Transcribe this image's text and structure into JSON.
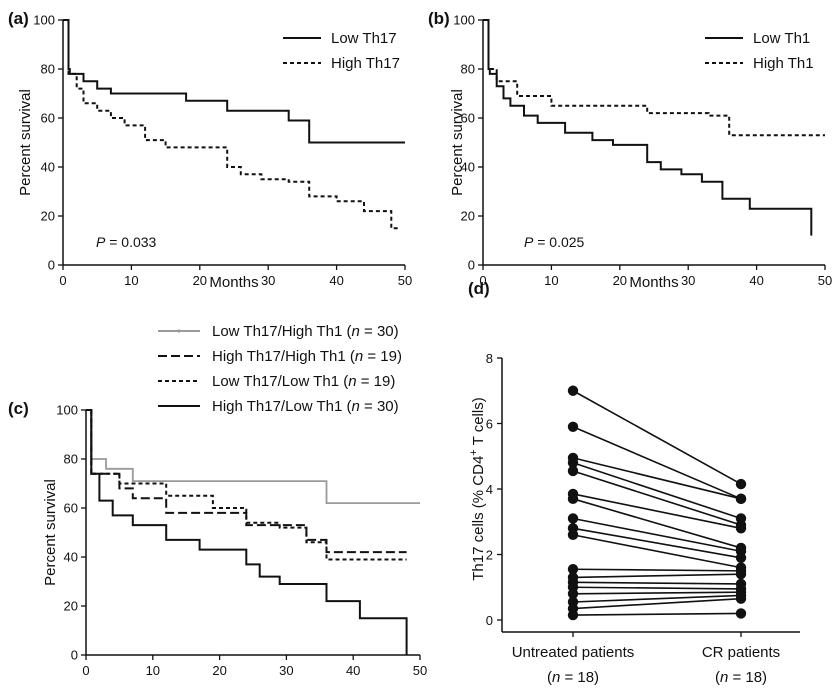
{
  "chart_data": [
    {
      "panel": "(a)",
      "type": "line",
      "step": true,
      "xlabel": "Months",
      "ylabel": "Percent survival",
      "xlim": [
        0,
        50
      ],
      "ylim": [
        0,
        100
      ],
      "xticks": [
        "0",
        "10",
        "20",
        "30",
        "40",
        "50"
      ],
      "yticks": [
        "0",
        "20",
        "40",
        "60",
        "80",
        "100"
      ],
      "annotation": {
        "prefix": "P",
        "value": " = 0.033"
      },
      "legend_position": "top-right",
      "series": [
        {
          "name": "Low Th17",
          "style": "solid",
          "color": "#111111",
          "points": [
            [
              0,
              100
            ],
            [
              0.8,
              100
            ],
            [
              0.8,
              80
            ],
            [
              1,
              80
            ],
            [
              1,
              78
            ],
            [
              3,
              78
            ],
            [
              3,
              75
            ],
            [
              5,
              75
            ],
            [
              5,
              72
            ],
            [
              7,
              72
            ],
            [
              7,
              70
            ],
            [
              18,
              70
            ],
            [
              18,
              67
            ],
            [
              24,
              67
            ],
            [
              24,
              63
            ],
            [
              33,
              63
            ],
            [
              33,
              59
            ],
            [
              36,
              59
            ],
            [
              36,
              50
            ],
            [
              50,
              50
            ]
          ]
        },
        {
          "name": "High Th17",
          "style": "dashed",
          "color": "#111111",
          "points": [
            [
              0,
              100
            ],
            [
              0.8,
              100
            ],
            [
              0.8,
              78
            ],
            [
              2,
              78
            ],
            [
              2,
              72
            ],
            [
              3,
              72
            ],
            [
              3,
              66
            ],
            [
              5,
              66
            ],
            [
              5,
              63
            ],
            [
              7,
              63
            ],
            [
              7,
              60
            ],
            [
              9,
              60
            ],
            [
              9,
              57
            ],
            [
              12,
              57
            ],
            [
              12,
              51
            ],
            [
              15,
              51
            ],
            [
              15,
              48
            ],
            [
              24,
              48
            ],
            [
              24,
              40
            ],
            [
              26,
              40
            ],
            [
              26,
              37
            ],
            [
              29,
              37
            ],
            [
              29,
              35
            ],
            [
              33,
              35
            ],
            [
              33,
              34
            ],
            [
              36,
              34
            ],
            [
              36,
              28
            ],
            [
              40,
              28
            ],
            [
              40,
              26
            ],
            [
              44,
              26
            ],
            [
              44,
              22
            ],
            [
              48,
              22
            ],
            [
              48,
              15
            ],
            [
              49,
              15
            ]
          ]
        }
      ]
    },
    {
      "panel": "(b)",
      "type": "line",
      "step": true,
      "xlabel": "Months",
      "ylabel": "Percent survival",
      "xlim": [
        0,
        50
      ],
      "ylim": [
        0,
        100
      ],
      "xticks": [
        "0",
        "10",
        "20",
        "30",
        "40",
        "50"
      ],
      "yticks": [
        "0",
        "20",
        "40",
        "60",
        "80",
        "100"
      ],
      "annotation": {
        "prefix": "P",
        "value": " = 0.025"
      },
      "legend_position": "top-right",
      "series": [
        {
          "name": "Low Th1",
          "style": "solid",
          "color": "#111111",
          "points": [
            [
              0,
              100
            ],
            [
              0.8,
              100
            ],
            [
              0.8,
              80
            ],
            [
              1,
              80
            ],
            [
              1,
              78
            ],
            [
              2,
              78
            ],
            [
              2,
              73
            ],
            [
              3,
              73
            ],
            [
              3,
              68
            ],
            [
              4,
              68
            ],
            [
              4,
              65
            ],
            [
              6,
              65
            ],
            [
              6,
              61
            ],
            [
              8,
              61
            ],
            [
              8,
              58
            ],
            [
              12,
              58
            ],
            [
              12,
              54
            ],
            [
              16,
              54
            ],
            [
              16,
              51
            ],
            [
              19,
              51
            ],
            [
              19,
              49
            ],
            [
              24,
              49
            ],
            [
              24,
              42
            ],
            [
              26,
              42
            ],
            [
              26,
              39
            ],
            [
              29,
              39
            ],
            [
              29,
              37
            ],
            [
              32,
              37
            ],
            [
              32,
              34
            ],
            [
              35,
              34
            ],
            [
              35,
              27
            ],
            [
              39,
              27
            ],
            [
              39,
              23
            ],
            [
              42,
              23
            ],
            [
              42,
              23
            ],
            [
              48,
              23
            ],
            [
              48,
              12
            ]
          ]
        },
        {
          "name": "High Th1",
          "style": "dashed",
          "color": "#111111",
          "points": [
            [
              0,
              100
            ],
            [
              0.8,
              100
            ],
            [
              0.8,
              80
            ],
            [
              2,
              80
            ],
            [
              2,
              75
            ],
            [
              5,
              75
            ],
            [
              5,
              69
            ],
            [
              10,
              69
            ],
            [
              10,
              65
            ],
            [
              24,
              65
            ],
            [
              24,
              62
            ],
            [
              33,
              62
            ],
            [
              33,
              61
            ],
            [
              36,
              61
            ],
            [
              36,
              53
            ],
            [
              50,
              53
            ]
          ]
        }
      ]
    },
    {
      "panel": "(c)",
      "type": "line",
      "step": true,
      "xlim": [
        0,
        50
      ],
      "ylim": [
        0,
        100
      ],
      "xticks": [
        "0",
        "10",
        "20",
        "30",
        "40",
        "50"
      ],
      "yticks": [
        "0",
        "20",
        "40",
        "60",
        "80",
        "100"
      ],
      "ylabel": "Percent survival",
      "legend_position": "top",
      "series": [
        {
          "name": "Low Th17/High Th1",
          "n": "30",
          "style": "solid-gray",
          "color": "#9a9a9a",
          "points": [
            [
              0,
              100
            ],
            [
              0.8,
              100
            ],
            [
              0.8,
              80
            ],
            [
              3,
              80
            ],
            [
              3,
              76
            ],
            [
              7,
              76
            ],
            [
              7,
              71
            ],
            [
              36,
              71
            ],
            [
              36,
              62
            ],
            [
              50,
              62
            ]
          ]
        },
        {
          "name": "High Th17/High Th1",
          "n": "19",
          "style": "longdash",
          "color": "#111111",
          "points": [
            [
              0,
              100
            ],
            [
              0.8,
              100
            ],
            [
              0.8,
              74
            ],
            [
              5,
              74
            ],
            [
              5,
              68
            ],
            [
              7,
              68
            ],
            [
              7,
              64
            ],
            [
              12,
              64
            ],
            [
              12,
              58
            ],
            [
              24,
              58
            ],
            [
              24,
              53
            ],
            [
              33,
              53
            ],
            [
              33,
              47
            ],
            [
              36,
              47
            ],
            [
              36,
              42
            ],
            [
              48,
              42
            ]
          ]
        },
        {
          "name": "Low Th17/Low Th1",
          "n": "19",
          "style": "dashed",
          "color": "#111111",
          "points": [
            [
              0,
              100
            ],
            [
              0.8,
              100
            ],
            [
              0.8,
              74
            ],
            [
              5,
              74
            ],
            [
              5,
              70
            ],
            [
              12,
              70
            ],
            [
              12,
              65
            ],
            [
              19,
              65
            ],
            [
              19,
              60
            ],
            [
              24,
              60
            ],
            [
              24,
              54
            ],
            [
              29,
              54
            ],
            [
              29,
              52
            ],
            [
              33,
              52
            ],
            [
              33,
              46
            ],
            [
              36,
              46
            ],
            [
              36,
              39
            ],
            [
              48,
              39
            ]
          ]
        },
        {
          "name": "High Th17/Low Th1",
          "n": "30",
          "style": "solid",
          "color": "#111111",
          "points": [
            [
              0,
              100
            ],
            [
              0.8,
              100
            ],
            [
              0.8,
              74
            ],
            [
              2,
              74
            ],
            [
              2,
              63
            ],
            [
              4,
              63
            ],
            [
              4,
              57
            ],
            [
              7,
              57
            ],
            [
              7,
              53
            ],
            [
              12,
              53
            ],
            [
              12,
              47
            ],
            [
              17,
              47
            ],
            [
              17,
              43
            ],
            [
              24,
              43
            ],
            [
              24,
              37
            ],
            [
              26,
              37
            ],
            [
              26,
              32
            ],
            [
              29,
              32
            ],
            [
              29,
              29
            ],
            [
              36,
              29
            ],
            [
              36,
              22
            ],
            [
              41,
              22
            ],
            [
              41,
              15
            ],
            [
              48,
              15
            ],
            [
              48,
              0
            ]
          ]
        }
      ]
    },
    {
      "panel": "(d)",
      "type": "scatter",
      "paired": true,
      "ylabel_main": "Th17 cells (% CD4",
      "ylabel_sup": "+",
      "ylabel_tail": " T cells)",
      "ylim": [
        0,
        8
      ],
      "yticks": [
        "0",
        "2",
        "4",
        "6",
        "8"
      ],
      "categories": [
        {
          "label": "Untreated patients",
          "n_prefix": "(",
          "n_var": "n",
          "n_value": " = 18)"
        },
        {
          "label": "CR patients",
          "n_prefix": "(",
          "n_var": "n",
          "n_value": " = 18)"
        }
      ],
      "pairs": [
        [
          7.0,
          4.15
        ],
        [
          5.9,
          3.7
        ],
        [
          4.95,
          3.7
        ],
        [
          4.8,
          3.1
        ],
        [
          4.55,
          2.9
        ],
        [
          3.85,
          2.8
        ],
        [
          3.7,
          2.2
        ],
        [
          3.1,
          2.1
        ],
        [
          2.8,
          1.9
        ],
        [
          2.6,
          1.6
        ],
        [
          1.55,
          1.5
        ],
        [
          1.3,
          1.4
        ],
        [
          1.15,
          1.1
        ],
        [
          1.0,
          0.95
        ],
        [
          0.8,
          0.85
        ],
        [
          0.55,
          0.75
        ],
        [
          0.35,
          0.65
        ],
        [
          0.15,
          0.2
        ]
      ]
    }
  ]
}
